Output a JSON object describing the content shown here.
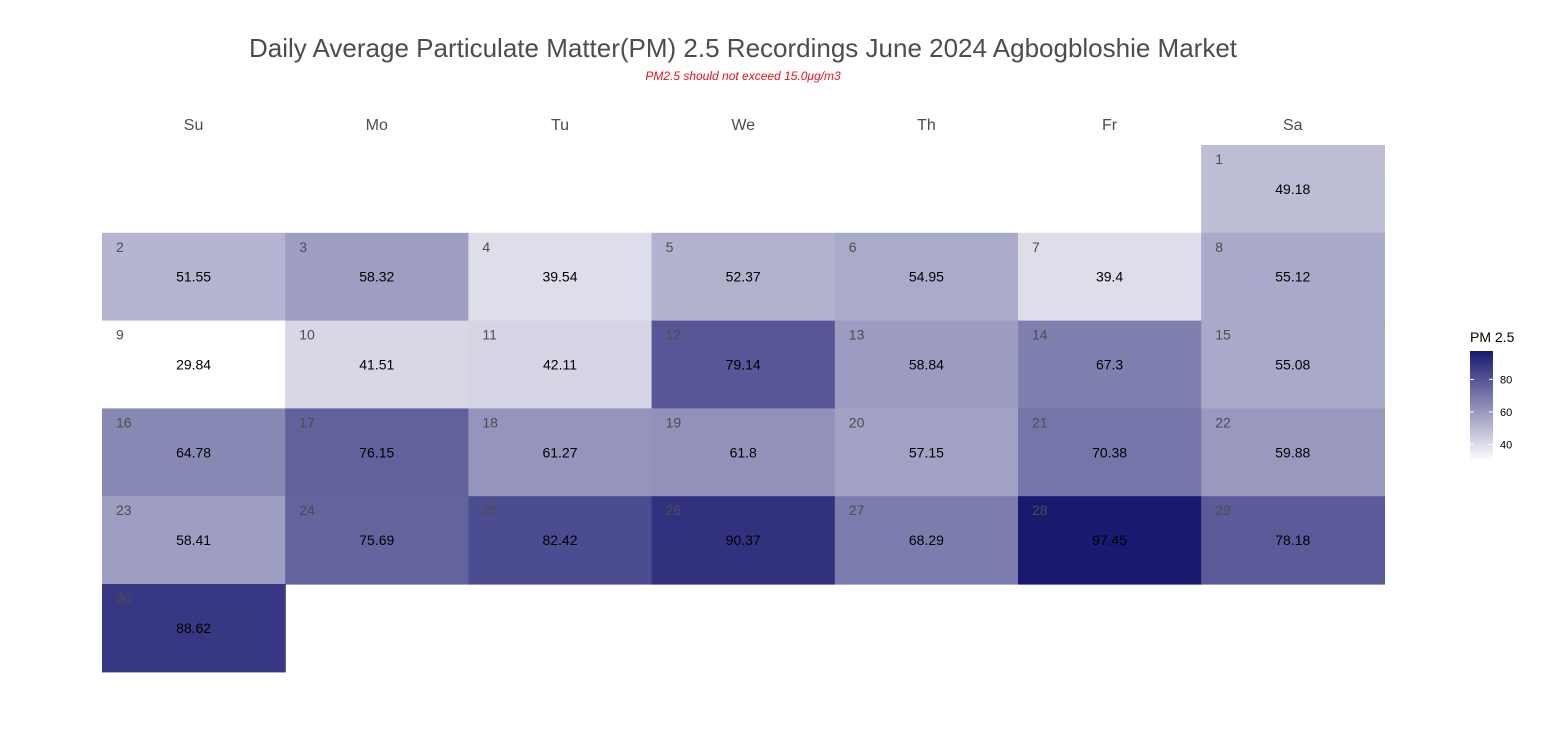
{
  "chart_data": {
    "type": "heatmap",
    "title": "Daily Average Particulate Matter(PM) 2.5 Recordings June 2024 Agbogbloshie Market",
    "subtitle": "PM2.5 should not exceed 15.0μg/m3",
    "weekdays": [
      "Su",
      "Mo",
      "Tu",
      "We",
      "Th",
      "Fr",
      "Sa"
    ],
    "month_start_weekday": 6,
    "days": [
      {
        "day": "1",
        "value": 49.18,
        "label": "49.18"
      },
      {
        "day": "2",
        "value": 51.55,
        "label": "51.55"
      },
      {
        "day": "3",
        "value": 58.32,
        "label": "58.32"
      },
      {
        "day": "4",
        "value": 39.54,
        "label": "39.54"
      },
      {
        "day": "5",
        "value": 52.37,
        "label": "52.37"
      },
      {
        "day": "6",
        "value": 54.95,
        "label": "54.95"
      },
      {
        "day": "7",
        "value": 39.4,
        "label": "39.4"
      },
      {
        "day": "8",
        "value": 55.12,
        "label": "55.12"
      },
      {
        "day": "9",
        "value": 29.84,
        "label": "29.84"
      },
      {
        "day": "10",
        "value": 41.51,
        "label": "41.51"
      },
      {
        "day": "11",
        "value": 42.11,
        "label": "42.11"
      },
      {
        "day": "12",
        "value": 79.14,
        "label": "79.14"
      },
      {
        "day": "13",
        "value": 58.84,
        "label": "58.84"
      },
      {
        "day": "14",
        "value": 67.3,
        "label": "67.3"
      },
      {
        "day": "15",
        "value": 55.08,
        "label": "55.08"
      },
      {
        "day": "16",
        "value": 64.78,
        "label": "64.78"
      },
      {
        "day": "17",
        "value": 76.15,
        "label": "76.15"
      },
      {
        "day": "18",
        "value": 61.27,
        "label": "61.27"
      },
      {
        "day": "19",
        "value": 61.8,
        "label": "61.8"
      },
      {
        "day": "20",
        "value": 57.15,
        "label": "57.15"
      },
      {
        "day": "21",
        "value": 70.38,
        "label": "70.38"
      },
      {
        "day": "22",
        "value": 59.88,
        "label": "59.88"
      },
      {
        "day": "23",
        "value": 58.41,
        "label": "58.41"
      },
      {
        "day": "24",
        "value": 75.69,
        "label": "75.69"
      },
      {
        "day": "25",
        "value": 82.42,
        "label": "82.42"
      },
      {
        "day": "26",
        "value": 90.37,
        "label": "90.37"
      },
      {
        "day": "27",
        "value": 68.29,
        "label": "68.29"
      },
      {
        "day": "28",
        "value": 97.45,
        "label": "97.45"
      },
      {
        "day": "29",
        "value": 78.18,
        "label": "78.18"
      },
      {
        "day": "30",
        "value": 88.62,
        "label": "88.62"
      }
    ],
    "legend": {
      "title": "PM 2.5",
      "placement": "right",
      "range": [
        29.84,
        97.45
      ],
      "ticks": [
        40,
        60,
        80
      ],
      "tick_labels": [
        "40",
        "60",
        "80"
      ]
    },
    "colors": {
      "low": "#ffffff",
      "high": "#191970",
      "subtitle": "#e8141a",
      "title": "#4d4d4d"
    }
  }
}
